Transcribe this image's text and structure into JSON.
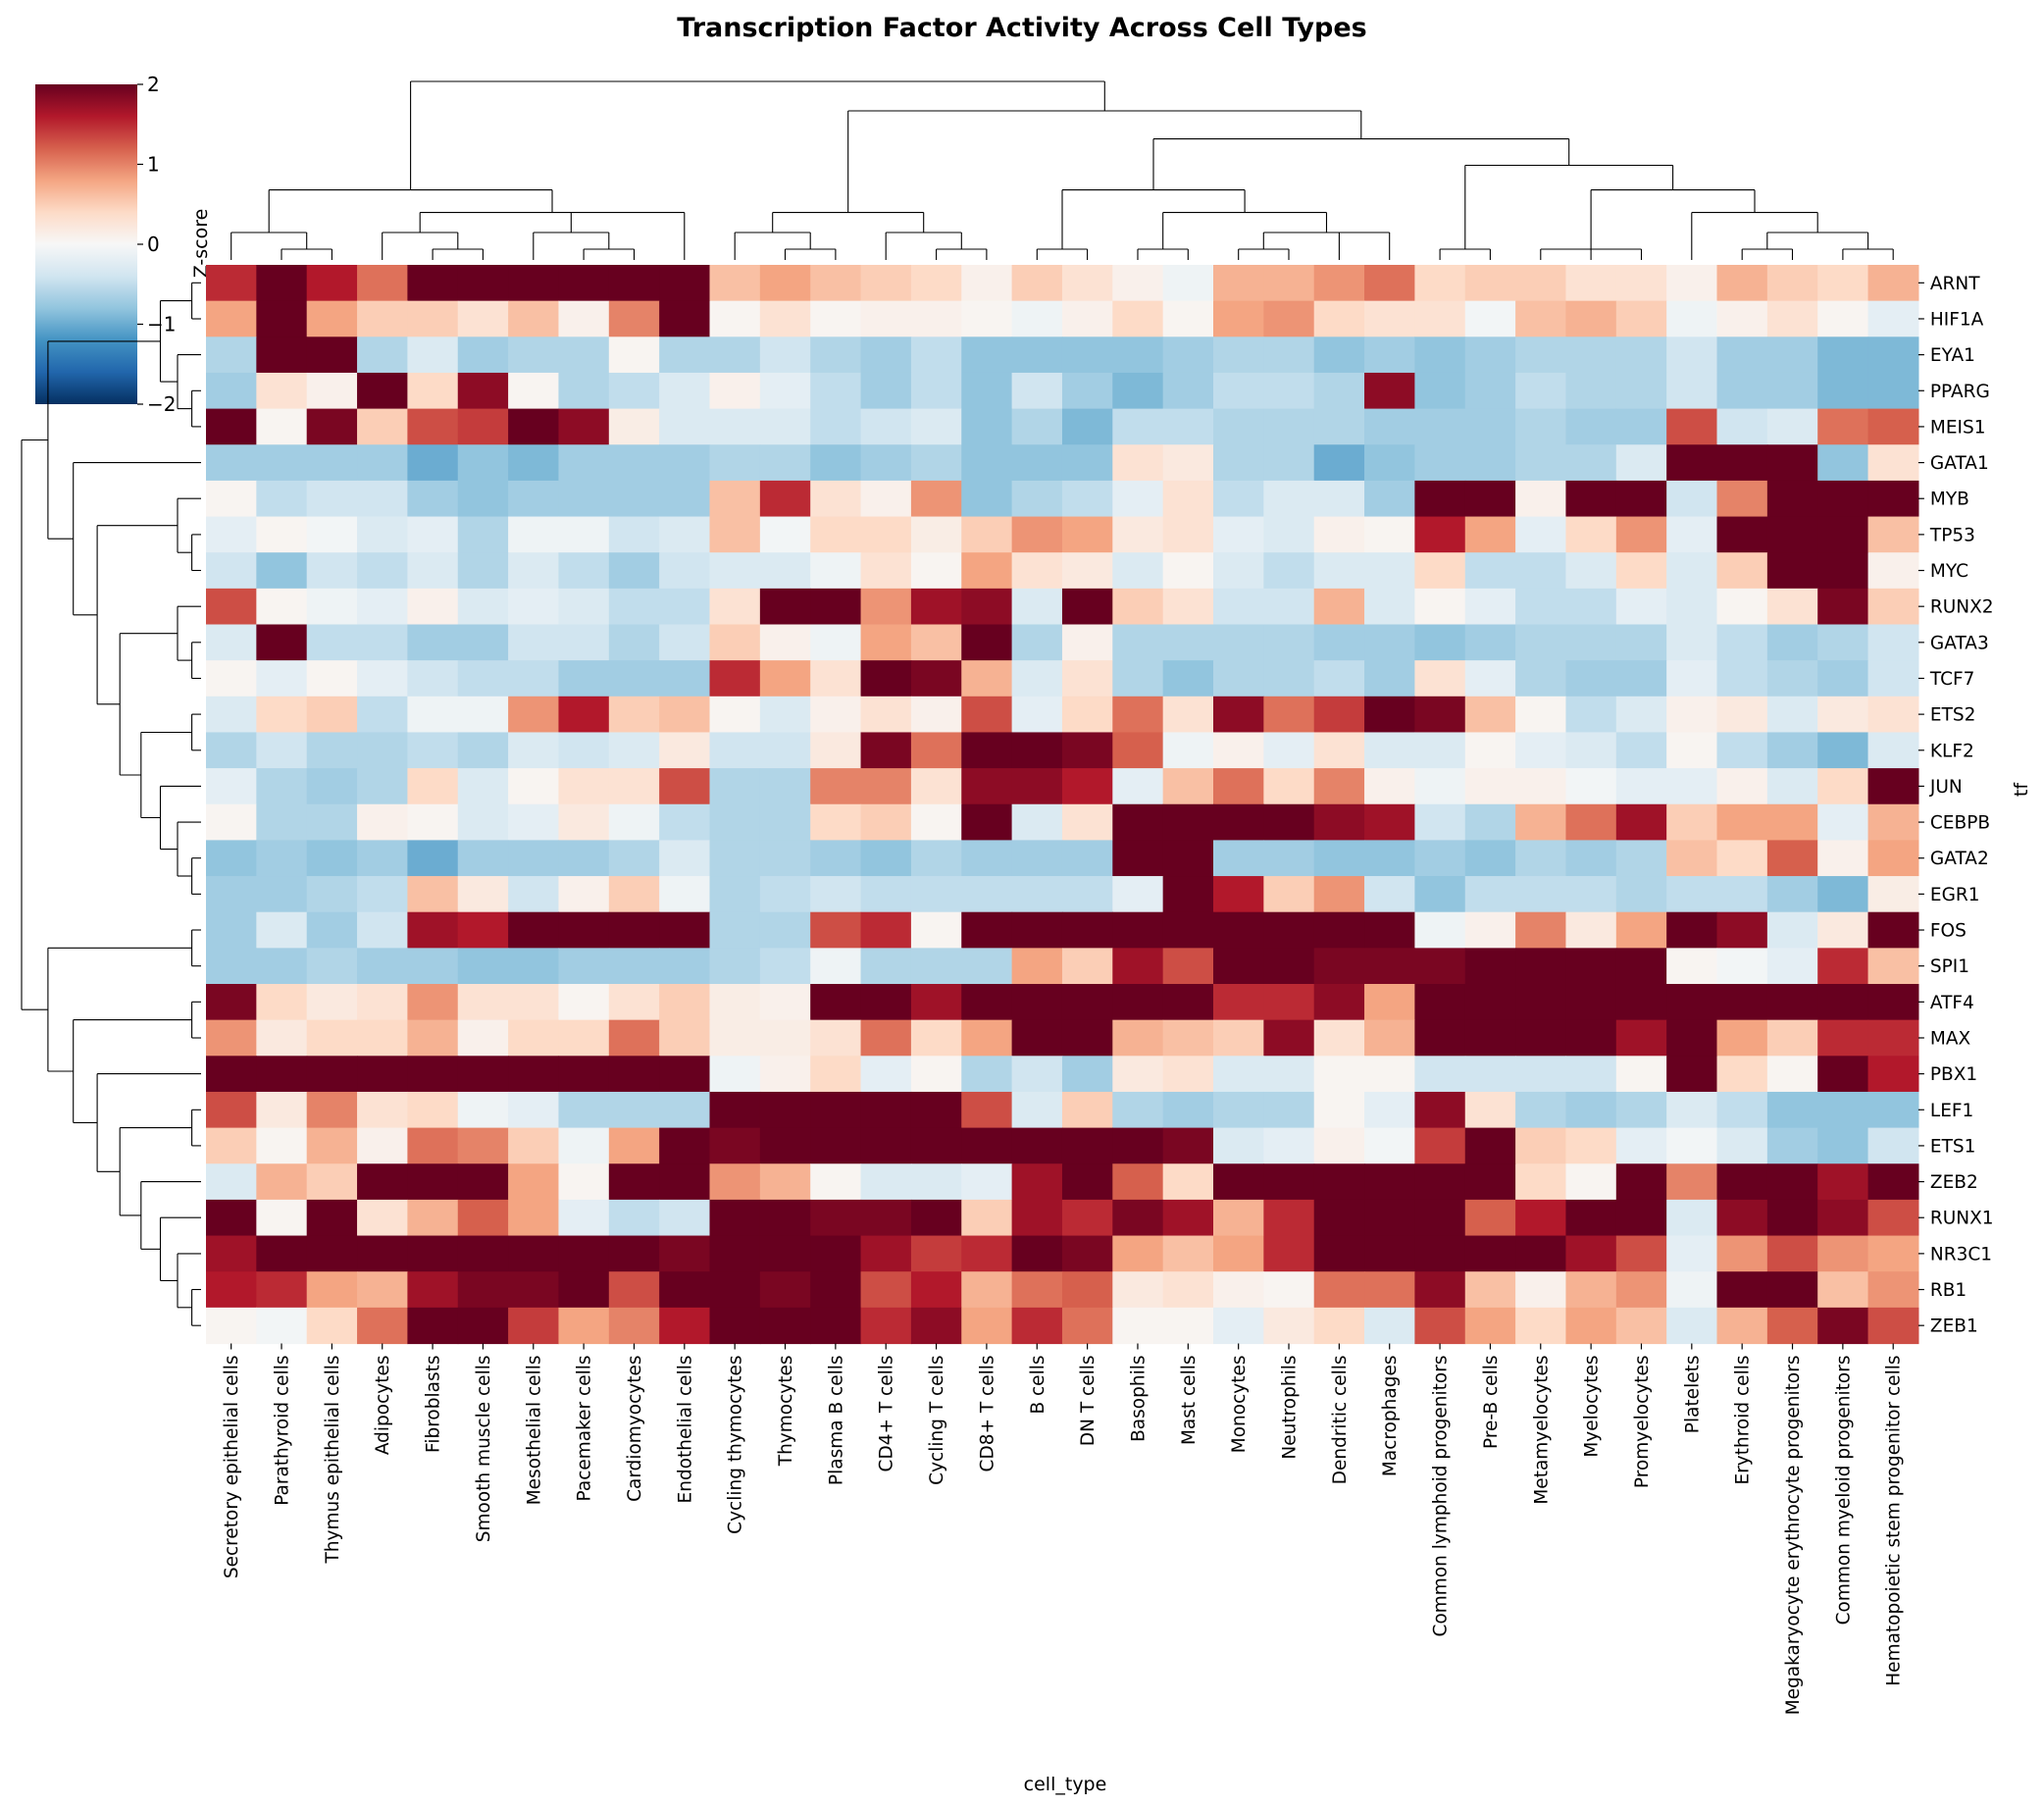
{
  "chart_data": {
    "type": "heatmap",
    "title": "Transcription Factor Activity Across Cell Types",
    "xlabel": "cell_type",
    "ylabel": "tf",
    "colorbar": {
      "label": "Z-score",
      "range": [
        -2,
        2
      ],
      "ticks": [
        "2",
        "1",
        "0",
        "−1",
        "−2"
      ],
      "colormap": "RdBu_r"
    },
    "columns": [
      "Secretory epithelial cells",
      "Parathyroid cells",
      "Thymus epithelial cells",
      "Adipocytes",
      "Fibroblasts",
      "Smooth muscle cells",
      "Mesothelial cells",
      "Pacemaker cells",
      "Cardiomyocytes",
      "Endothelial cells",
      "Cycling thymocytes",
      "Thymocytes",
      "Plasma B cells",
      "CD4+ T cells",
      "Cycling T cells",
      "CD8+ T cells",
      "B cells",
      "DN T cells",
      "Basophils",
      "Mast cells",
      "Monocytes",
      "Neutrophils",
      "Dendritic cells",
      "Macrophages",
      "Common lymphoid progenitors",
      "Pre-B cells",
      "Metamyelocytes",
      "Myelocytes",
      "Promyelocytes",
      "Platelets",
      "Erythroid cells",
      "Megakaryocyte erythrocyte progenitors",
      "Common myeloid progenitors",
      "Hematopoietic stem progenitor cells"
    ],
    "rows": [
      "ARNT",
      "HIF1A",
      "EYA1",
      "PPARG",
      "MEIS1",
      "GATA1",
      "MYB",
      "TP53",
      "MYC",
      "RUNX2",
      "GATA3",
      "TCF7",
      "ETS2",
      "KLF2",
      "JUN",
      "CEBPB",
      "GATA2",
      "EGR1",
      "FOS",
      "SPI1",
      "ATF4",
      "MAX",
      "PBX1",
      "LEF1",
      "ETS1",
      "ZEB2",
      "RUNX1",
      "NR3C1",
      "RB1",
      "ZEB1"
    ],
    "values": [
      [
        1.5,
        2,
        1.6,
        1.1,
        2,
        2,
        2,
        2,
        2,
        2,
        0.6,
        0.8,
        0.6,
        0.5,
        0.4,
        0.1,
        0.5,
        0.3,
        0.1,
        -0.1,
        0.7,
        0.7,
        0.9,
        1.1,
        0.4,
        0.5,
        0.5,
        0.3,
        0.3,
        0.1,
        0.7,
        0.5,
        0.4,
        0.7
      ],
      [
        0.8,
        2,
        0.8,
        0.5,
        0.5,
        0.3,
        0.6,
        0.1,
        1.0,
        2,
        0.05,
        0.3,
        0.05,
        0.1,
        0.1,
        0.05,
        -0.1,
        0.1,
        0.4,
        0.05,
        0.8,
        0.9,
        0.4,
        0.3,
        0.3,
        -0.05,
        0.6,
        0.7,
        0.5,
        -0.1,
        0.1,
        0.3,
        0.05,
        -0.2
      ],
      [
        -0.6,
        2,
        2,
        -0.6,
        -0.3,
        -0.7,
        -0.6,
        -0.6,
        0.05,
        -0.6,
        -0.6,
        -0.4,
        -0.6,
        -0.7,
        -0.5,
        -0.8,
        -0.8,
        -0.8,
        -0.8,
        -0.7,
        -0.6,
        -0.6,
        -0.8,
        -0.7,
        -0.8,
        -0.7,
        -0.6,
        -0.6,
        -0.6,
        -0.4,
        -0.7,
        -0.7,
        -0.9,
        -0.9
      ],
      [
        -0.7,
        0.3,
        0.1,
        2,
        0.4,
        1.8,
        0.05,
        -0.6,
        -0.5,
        -0.3,
        0.1,
        -0.2,
        -0.5,
        -0.7,
        -0.5,
        -0.8,
        -0.4,
        -0.7,
        -0.9,
        -0.7,
        -0.5,
        -0.5,
        -0.6,
        1.8,
        -0.8,
        -0.7,
        -0.5,
        -0.6,
        -0.6,
        -0.4,
        -0.7,
        -0.7,
        -0.9,
        -0.9
      ],
      [
        2,
        0.05,
        1.9,
        0.5,
        1.3,
        1.4,
        2,
        1.8,
        0.15,
        -0.3,
        -0.3,
        -0.3,
        -0.5,
        -0.4,
        -0.3,
        -0.8,
        -0.6,
        -0.9,
        -0.5,
        -0.5,
        -0.6,
        -0.6,
        -0.6,
        -0.7,
        -0.7,
        -0.7,
        -0.6,
        -0.7,
        -0.7,
        1.3,
        -0.4,
        -0.3,
        1.1,
        1.2
      ],
      [
        -0.7,
        -0.7,
        -0.7,
        -0.7,
        -1.0,
        -0.8,
        -0.9,
        -0.7,
        -0.7,
        -0.7,
        -0.6,
        -0.6,
        -0.8,
        -0.7,
        -0.6,
        -0.8,
        -0.8,
        -0.8,
        0.3,
        0.2,
        -0.6,
        -0.6,
        -1.0,
        -0.8,
        -0.7,
        -0.7,
        -0.6,
        -0.6,
        -0.3,
        2,
        2,
        2,
        -0.8,
        0.3
      ],
      [
        0.05,
        -0.5,
        -0.4,
        -0.4,
        -0.7,
        -0.8,
        -0.7,
        -0.7,
        -0.7,
        -0.7,
        0.6,
        1.5,
        0.3,
        0.1,
        0.9,
        -0.8,
        -0.6,
        -0.5,
        -0.2,
        0.3,
        -0.5,
        -0.3,
        -0.3,
        -0.7,
        2,
        2,
        0.1,
        2,
        2,
        -0.4,
        1.0,
        2,
        2,
        2
      ],
      [
        -0.2,
        0.05,
        -0.05,
        -0.3,
        -0.2,
        -0.6,
        -0.1,
        -0.1,
        -0.4,
        -0.3,
        0.6,
        -0.05,
        0.4,
        0.4,
        0.15,
        0.5,
        0.9,
        0.8,
        0.2,
        0.3,
        -0.2,
        -0.3,
        0.1,
        0.05,
        1.6,
        0.8,
        -0.2,
        0.4,
        0.9,
        -0.2,
        2,
        2,
        2,
        0.6
      ],
      [
        -0.4,
        -0.8,
        -0.4,
        -0.5,
        -0.3,
        -0.6,
        -0.3,
        -0.5,
        -0.7,
        -0.4,
        -0.3,
        -0.3,
        -0.1,
        0.3,
        0.05,
        0.8,
        0.3,
        0.2,
        -0.3,
        0.05,
        -0.3,
        -0.5,
        -0.3,
        -0.3,
        0.4,
        -0.5,
        -0.5,
        -0.3,
        0.4,
        -0.3,
        0.5,
        2,
        2,
        0.1
      ],
      [
        1.3,
        0.05,
        -0.1,
        -0.2,
        0.1,
        -0.3,
        -0.2,
        -0.3,
        -0.5,
        -0.5,
        0.3,
        2,
        2,
        0.9,
        1.7,
        1.8,
        -0.3,
        2,
        0.5,
        0.3,
        -0.4,
        -0.4,
        0.7,
        -0.3,
        0.05,
        -0.2,
        -0.5,
        -0.5,
        -0.2,
        -0.3,
        0.05,
        0.3,
        1.9,
        0.5
      ],
      [
        -0.3,
        2,
        -0.5,
        -0.5,
        -0.7,
        -0.7,
        -0.4,
        -0.4,
        -0.6,
        -0.4,
        0.5,
        0.1,
        -0.1,
        0.8,
        0.6,
        2,
        -0.6,
        0.1,
        -0.6,
        -0.6,
        -0.6,
        -0.6,
        -0.7,
        -0.7,
        -0.8,
        -0.7,
        -0.6,
        -0.6,
        -0.6,
        -0.3,
        -0.5,
        -0.7,
        -0.6,
        -0.4
      ],
      [
        0.05,
        -0.2,
        0.05,
        -0.2,
        -0.4,
        -0.5,
        -0.5,
        -0.7,
        -0.7,
        -0.7,
        1.5,
        0.8,
        0.3,
        2,
        1.9,
        0.7,
        -0.3,
        0.3,
        -0.6,
        -0.8,
        -0.6,
        -0.6,
        -0.5,
        -0.7,
        0.3,
        -0.2,
        -0.6,
        -0.7,
        -0.7,
        -0.2,
        -0.5,
        -0.6,
        -0.7,
        -0.4
      ],
      [
        -0.3,
        0.4,
        0.5,
        -0.5,
        -0.1,
        -0.1,
        0.9,
        1.6,
        0.5,
        0.6,
        0.05,
        -0.3,
        0.1,
        0.3,
        0.1,
        1.3,
        -0.2,
        0.4,
        1.1,
        0.3,
        1.8,
        1.1,
        1.4,
        2,
        1.9,
        0.6,
        0.05,
        -0.5,
        -0.3,
        0.1,
        0.2,
        -0.3,
        0.2,
        0.3
      ],
      [
        -0.6,
        -0.4,
        -0.6,
        -0.6,
        -0.5,
        -0.6,
        -0.3,
        -0.4,
        -0.3,
        0.2,
        -0.4,
        -0.4,
        0.2,
        1.9,
        1.1,
        2,
        2,
        1.9,
        1.2,
        -0.1,
        0.1,
        -0.2,
        0.3,
        -0.3,
        -0.3,
        0.05,
        -0.2,
        -0.3,
        -0.5,
        0.05,
        -0.5,
        -0.7,
        -0.9,
        -0.3
      ],
      [
        -0.2,
        -0.6,
        -0.7,
        -0.6,
        0.4,
        -0.3,
        0.05,
        0.3,
        0.3,
        1.3,
        -0.6,
        -0.6,
        1.0,
        1.0,
        0.3,
        1.8,
        1.8,
        1.6,
        -0.2,
        0.6,
        1.1,
        0.4,
        1.0,
        0.1,
        -0.1,
        0.1,
        0.1,
        -0.05,
        -0.2,
        -0.2,
        0.1,
        -0.3,
        0.4,
        2
      ],
      [
        0.05,
        -0.6,
        -0.6,
        0.1,
        0.05,
        -0.3,
        -0.2,
        0.2,
        -0.1,
        -0.5,
        -0.6,
        -0.6,
        0.4,
        0.5,
        0.05,
        2,
        -0.3,
        0.3,
        2,
        2,
        2,
        2,
        1.8,
        1.7,
        -0.4,
        -0.6,
        0.7,
        1.1,
        1.7,
        0.5,
        0.8,
        0.8,
        -0.2,
        0.7
      ],
      [
        -0.8,
        -0.7,
        -0.8,
        -0.7,
        -1.0,
        -0.7,
        -0.7,
        -0.7,
        -0.6,
        -0.3,
        -0.6,
        -0.6,
        -0.7,
        -0.8,
        -0.6,
        -0.7,
        -0.7,
        -0.7,
        2,
        2,
        -0.7,
        -0.7,
        -0.8,
        -0.8,
        -0.7,
        -0.8,
        -0.6,
        -0.7,
        -0.6,
        0.6,
        0.4,
        1.2,
        0.1,
        0.8
      ],
      [
        -0.7,
        -0.7,
        -0.6,
        -0.5,
        0.6,
        0.2,
        -0.4,
        0.1,
        0.5,
        -0.1,
        -0.6,
        -0.5,
        -0.4,
        -0.5,
        -0.5,
        -0.5,
        -0.5,
        -0.5,
        -0.2,
        2,
        1.6,
        0.5,
        0.9,
        -0.4,
        -0.8,
        -0.5,
        -0.5,
        -0.5,
        -0.6,
        -0.5,
        -0.5,
        -0.7,
        -0.9,
        0.15
      ],
      [
        -0.7,
        -0.3,
        -0.7,
        -0.4,
        1.7,
        1.6,
        2,
        2,
        2,
        2,
        -0.6,
        -0.6,
        1.3,
        1.5,
        0.05,
        2,
        2,
        2,
        2,
        2,
        2,
        2,
        2,
        2,
        -0.1,
        0.1,
        1.0,
        0.2,
        0.8,
        2,
        1.8,
        -0.3,
        0.2,
        2
      ],
      [
        -0.7,
        -0.7,
        -0.6,
        -0.7,
        -0.7,
        -0.8,
        -0.8,
        -0.7,
        -0.7,
        -0.7,
        -0.6,
        -0.5,
        -0.1,
        -0.6,
        -0.6,
        -0.6,
        0.8,
        0.5,
        1.7,
        1.3,
        2,
        2,
        1.9,
        1.9,
        1.9,
        2,
        2,
        2,
        2,
        0.05,
        -0.05,
        -0.2,
        1.5,
        0.6
      ],
      [
        1.9,
        0.4,
        0.2,
        0.3,
        0.9,
        0.3,
        0.3,
        0.05,
        0.3,
        0.5,
        0.15,
        0.1,
        2,
        2,
        1.7,
        2,
        2,
        2,
        2,
        2,
        1.5,
        1.5,
        1.8,
        0.8,
        2,
        2,
        2,
        2,
        2,
        2,
        2,
        2,
        2,
        2
      ],
      [
        0.9,
        0.2,
        0.4,
        0.4,
        0.7,
        0.1,
        0.4,
        0.4,
        1.1,
        0.5,
        0.15,
        0.15,
        0.3,
        1.1,
        0.4,
        0.8,
        2,
        2,
        0.7,
        0.6,
        0.5,
        1.8,
        0.3,
        0.7,
        2,
        2,
        2,
        2,
        1.7,
        2,
        0.8,
        0.5,
        1.5,
        1.5
      ],
      [
        2,
        2,
        2,
        2,
        2,
        2,
        2,
        2,
        2,
        2,
        -0.1,
        0.1,
        0.4,
        -0.2,
        0.05,
        -0.6,
        -0.4,
        -0.7,
        0.2,
        0.3,
        -0.3,
        -0.3,
        0.05,
        0.05,
        -0.4,
        -0.4,
        -0.4,
        -0.4,
        0.05,
        2,
        0.4,
        0.05,
        2,
        1.6
      ],
      [
        1.3,
        0.2,
        1.0,
        0.3,
        0.4,
        -0.1,
        -0.2,
        -0.6,
        -0.6,
        -0.6,
        2,
        2,
        2,
        2,
        2,
        1.3,
        -0.3,
        0.5,
        -0.6,
        -0.7,
        -0.6,
        -0.6,
        0.05,
        -0.2,
        1.8,
        0.3,
        -0.6,
        -0.7,
        -0.6,
        -0.3,
        -0.5,
        -0.8,
        -0.8,
        -0.8
      ],
      [
        0.5,
        0.05,
        0.7,
        0.1,
        1.1,
        1.0,
        0.5,
        -0.1,
        0.8,
        2,
        1.9,
        2,
        2,
        2,
        2,
        2,
        2,
        2,
        2,
        1.9,
        -0.3,
        -0.2,
        0.1,
        -0.05,
        1.4,
        2,
        0.5,
        0.4,
        -0.2,
        -0.05,
        -0.3,
        -0.7,
        -0.8,
        -0.4
      ],
      [
        -0.3,
        0.7,
        0.5,
        2,
        2,
        2,
        0.8,
        0.05,
        2,
        2,
        0.9,
        0.7,
        0.05,
        -0.3,
        -0.3,
        -0.2,
        1.7,
        2,
        1.2,
        0.4,
        2,
        2,
        2,
        2,
        2,
        2,
        0.4,
        0.05,
        2,
        1.0,
        2,
        2,
        1.7,
        2
      ],
      [
        2,
        0.05,
        2,
        0.3,
        0.7,
        1.2,
        0.8,
        -0.2,
        -0.5,
        -0.4,
        2,
        2,
        1.9,
        1.9,
        2,
        0.5,
        1.7,
        1.5,
        1.9,
        1.7,
        0.7,
        1.5,
        2,
        2,
        2,
        1.2,
        1.6,
        2,
        2,
        -0.3,
        1.8,
        2,
        1.8,
        1.3
      ],
      [
        1.7,
        2,
        2,
        2,
        2,
        2,
        2,
        2,
        2,
        1.9,
        2,
        2,
        2,
        1.7,
        1.4,
        1.5,
        2,
        1.9,
        0.8,
        0.6,
        0.8,
        1.5,
        2,
        2,
        2,
        2,
        2,
        1.7,
        1.3,
        -0.2,
        0.9,
        1.3,
        0.9,
        0.8
      ],
      [
        1.6,
        1.5,
        0.8,
        0.7,
        1.7,
        1.9,
        1.9,
        2,
        1.3,
        2,
        2,
        1.9,
        2,
        1.3,
        1.6,
        0.7,
        1.1,
        1.2,
        0.2,
        0.3,
        0.1,
        0.05,
        1.1,
        1.1,
        1.8,
        0.6,
        0.1,
        0.7,
        0.9,
        -0.1,
        2,
        2,
        0.6,
        0.9
      ],
      [
        0.05,
        -0.05,
        0.4,
        1.1,
        2,
        2,
        1.4,
        0.8,
        1.0,
        1.6,
        2,
        2,
        2,
        1.5,
        1.8,
        0.8,
        1.5,
        1.1,
        0.05,
        0.05,
        -0.2,
        0.2,
        0.4,
        -0.3,
        1.3,
        0.8,
        0.4,
        0.8,
        0.6,
        -0.3,
        0.7,
        1.2,
        1.9,
        1.3
      ]
    ]
  }
}
